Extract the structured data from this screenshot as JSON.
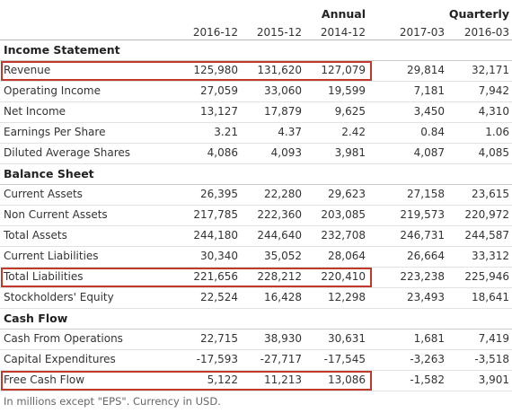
{
  "header": {
    "annual": "Annual",
    "quarterly": "Quarterly",
    "columns": [
      "2016-12",
      "2015-12",
      "2014-12",
      "2017-03",
      "2016-03"
    ]
  },
  "sections": [
    {
      "title": "Income Statement",
      "rows": [
        {
          "label": "Revenue",
          "values": [
            "125,980",
            "131,620",
            "127,079",
            "29,814",
            "32,171"
          ],
          "highlighted": true
        },
        {
          "label": "Operating Income",
          "values": [
            "27,059",
            "33,060",
            "19,599",
            "7,181",
            "7,942"
          ]
        },
        {
          "label": "Net Income",
          "values": [
            "13,127",
            "17,879",
            "9,625",
            "3,450",
            "4,310"
          ]
        },
        {
          "label": "Earnings Per Share",
          "values": [
            "3.21",
            "4.37",
            "2.42",
            "0.84",
            "1.06"
          ]
        },
        {
          "label": "Diluted Average Shares",
          "values": [
            "4,086",
            "4,093",
            "3,981",
            "4,087",
            "4,085"
          ]
        }
      ]
    },
    {
      "title": "Balance Sheet",
      "rows": [
        {
          "label": "Current Assets",
          "values": [
            "26,395",
            "22,280",
            "29,623",
            "27,158",
            "23,615"
          ]
        },
        {
          "label": "Non Current Assets",
          "values": [
            "217,785",
            "222,360",
            "203,085",
            "219,573",
            "220,972"
          ]
        },
        {
          "label": "Total Assets",
          "values": [
            "244,180",
            "244,640",
            "232,708",
            "246,731",
            "244,587"
          ]
        },
        {
          "label": "Current Liabilities",
          "values": [
            "30,340",
            "35,052",
            "28,064",
            "26,664",
            "33,312"
          ]
        },
        {
          "label": "Total Liabilities",
          "values": [
            "221,656",
            "228,212",
            "220,410",
            "223,238",
            "225,946"
          ],
          "highlighted": true
        },
        {
          "label": "Stockholders' Equity",
          "values": [
            "22,524",
            "16,428",
            "12,298",
            "23,493",
            "18,641"
          ]
        }
      ]
    },
    {
      "title": "Cash Flow",
      "rows": [
        {
          "label": "Cash From Operations",
          "values": [
            "22,715",
            "38,930",
            "30,631",
            "1,681",
            "7,419"
          ]
        },
        {
          "label": "Capital Expenditures",
          "values": [
            "-17,593",
            "-27,717",
            "-17,545",
            "-3,263",
            "-3,518"
          ]
        },
        {
          "label": "Free Cash Flow",
          "values": [
            "5,122",
            "11,213",
            "13,086",
            "-1,582",
            "3,901"
          ],
          "highlighted": true
        }
      ]
    }
  ],
  "footnote": "In millions except \"EPS\". Currency in USD."
}
